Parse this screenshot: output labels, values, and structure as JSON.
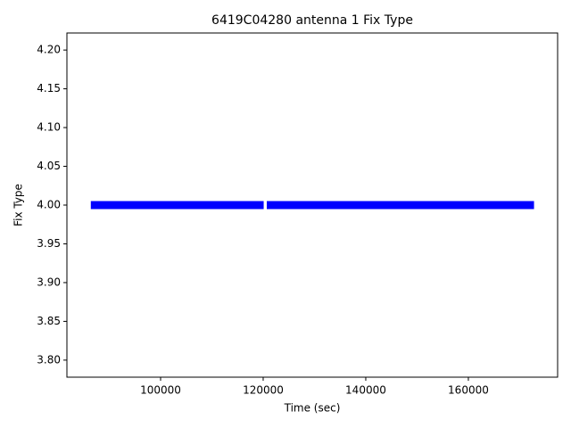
{
  "chart_data": {
    "type": "line",
    "title": "6419C04280 antenna 1 Fix Type",
    "x_label": "Time (sec)",
    "y_label": "Fix Type",
    "x": [
      86400,
      120100,
      null,
      120700,
      172800
    ],
    "series": [
      {
        "color": "#0000ff",
        "values": [
          4,
          4,
          null,
          4,
          4
        ]
      }
    ],
    "xlim": [
      81740,
      177400
    ],
    "ylim": [
      3.778,
      4.222
    ],
    "xticks": [
      100000,
      120000,
      140000,
      160000
    ],
    "yticks": [
      {
        "value": 3.8,
        "label": "3.80"
      },
      3.85,
      {
        "value": 3.9,
        "label": "3.90"
      },
      3.95,
      {
        "value": 4.0,
        "label": "4.00"
      },
      4.05,
      {
        "value": 4.1,
        "label": "4.10"
      },
      4.15,
      {
        "value": 4.2,
        "label": "4.20"
      }
    ]
  }
}
